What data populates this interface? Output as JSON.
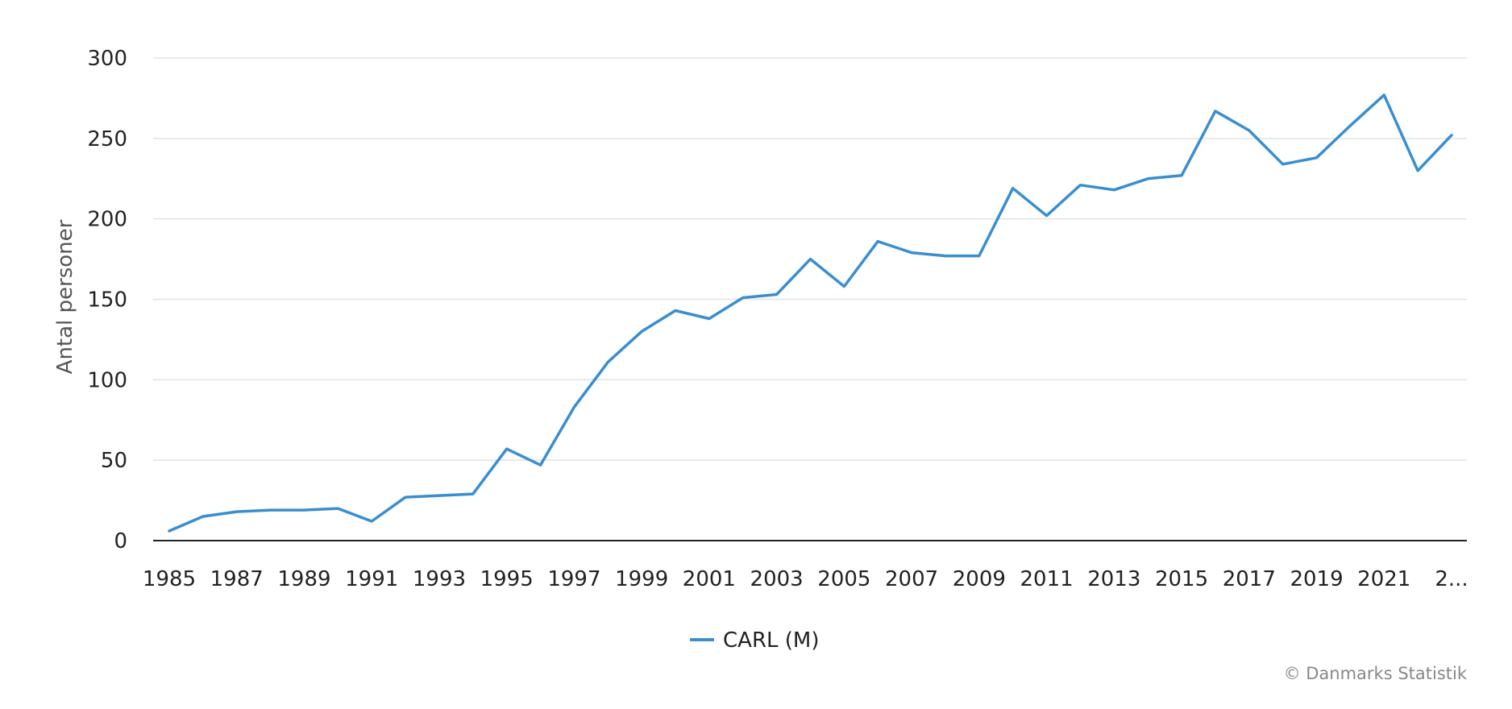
{
  "chart_data": {
    "type": "line",
    "ylabel": "Antal personer",
    "ylim": [
      0,
      300
    ],
    "yticks": [
      0,
      50,
      100,
      150,
      200,
      250,
      300
    ],
    "x_tick_labels": [
      "1985",
      "1987",
      "1989",
      "1991",
      "1993",
      "1995",
      "1997",
      "1999",
      "2001",
      "2003",
      "2005",
      "2007",
      "2009",
      "2011",
      "2013",
      "2015",
      "2017",
      "2019",
      "2021",
      "2..."
    ],
    "x": [
      1985,
      1986,
      1987,
      1988,
      1989,
      1990,
      1991,
      1992,
      1993,
      1994,
      1995,
      1996,
      1997,
      1998,
      1999,
      2000,
      2001,
      2002,
      2003,
      2004,
      2005,
      2006,
      2007,
      2008,
      2009,
      2010,
      2011,
      2012,
      2013,
      2014,
      2015,
      2016,
      2017,
      2018,
      2019,
      2020,
      2021,
      2022,
      2023
    ],
    "series": [
      {
        "name": "CARL (M)",
        "color": "#3a8ecf",
        "values": [
          6,
          15,
          18,
          19,
          19,
          20,
          12,
          27,
          28,
          29,
          57,
          47,
          83,
          111,
          130,
          143,
          138,
          151,
          153,
          175,
          158,
          186,
          179,
          177,
          177,
          219,
          202,
          221,
          218,
          225,
          227,
          267,
          255,
          234,
          238,
          258,
          277,
          230,
          252
        ]
      }
    ],
    "grid": true,
    "legend": "bottom-center",
    "credit": "© Danmarks Statistik"
  }
}
